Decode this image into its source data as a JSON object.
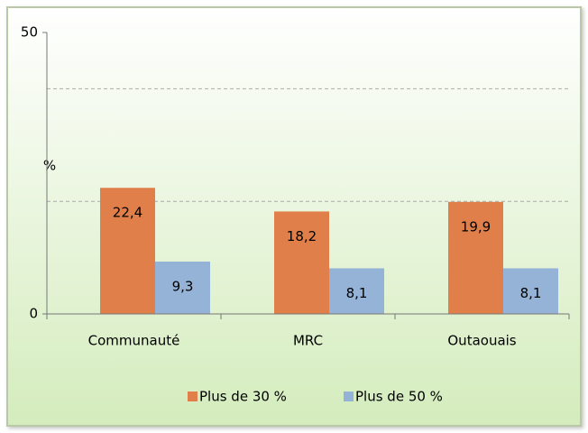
{
  "chart_data": {
    "type": "bar",
    "ylabel": "%",
    "categories": [
      "Communauté",
      "MRC",
      "Outaouais"
    ],
    "series": [
      {
        "name": "Plus de 30 %",
        "color": "#e07f4a",
        "values": [
          22.4,
          18.2,
          19.9
        ],
        "value_labels": [
          "22,4",
          "18,2",
          "19,9"
        ]
      },
      {
        "name": "Plus de 50 %",
        "color": "#95b3d7",
        "values": [
          9.3,
          8.1,
          8.1
        ],
        "value_labels": [
          "9,3",
          "8,1",
          "8,1"
        ]
      }
    ],
    "ylim": [
      0,
      50
    ],
    "yticks": [
      0,
      50
    ],
    "gridlines": [
      20,
      40
    ],
    "legend": "bottom"
  }
}
